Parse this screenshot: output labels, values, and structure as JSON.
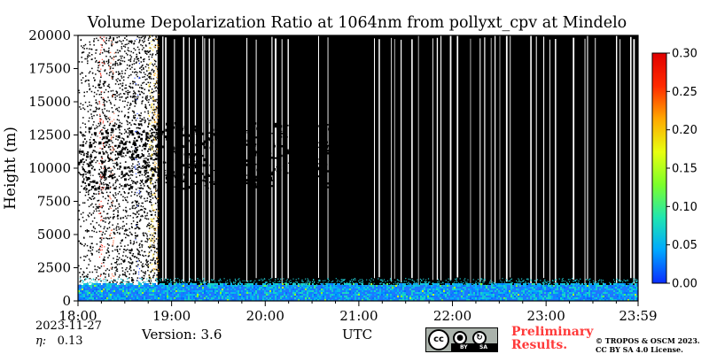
{
  "chart_data": {
    "type": "heatmap",
    "title": "Volume Depolarization Ratio at 1064nm from pollyxt_cpv at Mindelo",
    "ylabel": "Height (m)",
    "xlabel": "UTC",
    "x_ticks": [
      "18:00",
      "19:00",
      "20:00",
      "21:00",
      "22:00",
      "23:00",
      "23:59"
    ],
    "x_tick_hours": [
      18,
      19,
      20,
      21,
      22,
      23,
      23.983
    ],
    "xlim": [
      18,
      23.983
    ],
    "y_ticks": [
      0,
      2500,
      5000,
      7500,
      10000,
      12500,
      15000,
      17500,
      20000
    ],
    "ylim": [
      0,
      20000
    ],
    "colorbar": {
      "min": 0.0,
      "max": 0.3,
      "ticks": [
        "0.00",
        "0.05",
        "0.10",
        "0.15",
        "0.20",
        "0.25",
        "0.30"
      ],
      "tick_values": [
        0,
        0.05,
        0.1,
        0.15,
        0.2,
        0.25,
        0.3
      ],
      "colors": [
        "#0a2cff",
        "#00a8ff",
        "#20e6b0",
        "#7cff2a",
        "#e8ff10",
        "#ffa800",
        "#ff2a00",
        "#e00000"
      ]
    },
    "background_color": "#000000",
    "features": {
      "surface_layer_top_m": 1200,
      "surface_layer_value_range": [
        0.02,
        0.08
      ],
      "cloud_layer_bottom_m": 8500,
      "cloud_layer_top_m": 13500,
      "cloud_layer_start_hour": 18.0,
      "cloud_layer_end_hour": 20.8,
      "noisy_period_end_hour": 19.0
    }
  },
  "footer": {
    "date": "2023-11-27",
    "eta_label": "η:",
    "eta_value": "0.13",
    "version": "Version: 3.6",
    "utc": "UTC",
    "preliminary_line1": "Preliminary",
    "preliminary_line2": "Results.",
    "copyright_line1": "© TROPOS & OSCM 2023.",
    "copyright_line2": "CC BY SA 4.0 License.",
    "cc_badge_text": "cc",
    "cc_by": "BY",
    "cc_sa": "SA"
  }
}
